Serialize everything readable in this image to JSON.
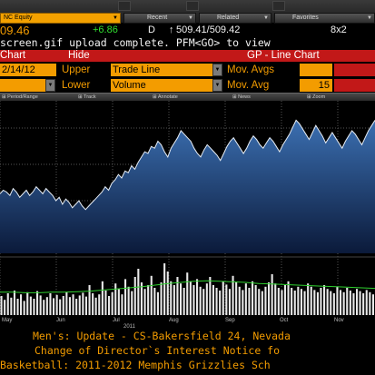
{
  "toolbar": {
    "ticker": "NC Equity",
    "recent": "Recent",
    "related": "Related",
    "favorites": "Favorites"
  },
  "quote": {
    "price": "09.46",
    "change": "+6.86",
    "flag": "D",
    "bidask": "509.41/509.42",
    "size": "8x2"
  },
  "message": "screen.gif upload complete. PFM<GO> to view",
  "menu": {
    "chart_label": "Chart",
    "hide_label": "Hide",
    "title": "GP - Line Chart",
    "date": "2/14/12",
    "upper_label": "Upper",
    "upper_value": "Trade Line",
    "lower_label": "Lower",
    "lower_value": "Volume",
    "mov_avgs_label": "Mov. Avgs",
    "mov_avg_label": "Mov. Avg",
    "mov_avg_value": "15"
  },
  "chart_tools": {
    "period": "Period/Range",
    "track": "Track",
    "annotate": "Annotate",
    "news": "News",
    "zoom": "Zoom"
  },
  "chart_data": {
    "type": "area",
    "title": "",
    "months": [
      "May",
      "Jun",
      "Jul",
      "Aug",
      "Sep",
      "Oct",
      "Nov"
    ],
    "year_label": "2011",
    "price_series": [
      0.34,
      0.36,
      0.35,
      0.33,
      0.37,
      0.35,
      0.32,
      0.34,
      0.36,
      0.33,
      0.35,
      0.38,
      0.36,
      0.34,
      0.37,
      0.35,
      0.33,
      0.3,
      0.32,
      0.28,
      0.31,
      0.29,
      0.26,
      0.28,
      0.3,
      0.27,
      0.25,
      0.27,
      0.29,
      0.31,
      0.33,
      0.35,
      0.38,
      0.36,
      0.4,
      0.42,
      0.45,
      0.43,
      0.47,
      0.46,
      0.5,
      0.48,
      0.52,
      0.55,
      0.58,
      0.57,
      0.61,
      0.6,
      0.64,
      0.62,
      0.58,
      0.55,
      0.6,
      0.63,
      0.66,
      0.7,
      0.68,
      0.66,
      0.64,
      0.6,
      0.57,
      0.55,
      0.59,
      0.62,
      0.6,
      0.58,
      0.56,
      0.53,
      0.57,
      0.61,
      0.64,
      0.66,
      0.63,
      0.6,
      0.57,
      0.6,
      0.64,
      0.67,
      0.65,
      0.62,
      0.6,
      0.63,
      0.66,
      0.64,
      0.61,
      0.58,
      0.62,
      0.65,
      0.68,
      0.72,
      0.76,
      0.74,
      0.71,
      0.68,
      0.65,
      0.69,
      0.73,
      0.7,
      0.67,
      0.63,
      0.66,
      0.69,
      0.66,
      0.63,
      0.6,
      0.64,
      0.67,
      0.7,
      0.68,
      0.65,
      0.62,
      0.66,
      0.7,
      0.73,
      0.76
    ],
    "volume_series": [
      0.35,
      0.28,
      0.4,
      0.32,
      0.45,
      0.3,
      0.38,
      0.26,
      0.42,
      0.34,
      0.3,
      0.44,
      0.36,
      0.28,
      0.33,
      0.4,
      0.31,
      0.37,
      0.29,
      0.35,
      0.42,
      0.33,
      0.38,
      0.3,
      0.36,
      0.41,
      0.34,
      0.55,
      0.4,
      0.32,
      0.38,
      0.62,
      0.45,
      0.35,
      0.42,
      0.58,
      0.48,
      0.38,
      0.66,
      0.52,
      0.44,
      0.7,
      0.85,
      0.6,
      0.48,
      0.55,
      0.72,
      0.5,
      0.42,
      0.6,
      0.95,
      0.8,
      0.62,
      0.55,
      0.7,
      0.58,
      0.5,
      0.78,
      0.62,
      0.55,
      0.66,
      0.52,
      0.48,
      0.58,
      0.7,
      0.55,
      0.5,
      0.45,
      0.62,
      0.56,
      0.48,
      0.72,
      0.6,
      0.52,
      0.46,
      0.58,
      0.5,
      0.62,
      0.55,
      0.48,
      0.44,
      0.52,
      0.6,
      0.75,
      0.58,
      0.5,
      0.46,
      0.55,
      0.62,
      0.5,
      0.45,
      0.52,
      0.48,
      0.44,
      0.58,
      0.52,
      0.46,
      0.42,
      0.5,
      0.55,
      0.48,
      0.44,
      0.4,
      0.52,
      0.46,
      0.42,
      0.5,
      0.45,
      0.4,
      0.48,
      0.44,
      0.4,
      0.46,
      0.42,
      0.38
    ],
    "moving_average": [
      0.42,
      0.42,
      0.41,
      0.41,
      0.42,
      0.42,
      0.43,
      0.44,
      0.46,
      0.48,
      0.5,
      0.52,
      0.55,
      0.58,
      0.6,
      0.62,
      0.63,
      0.62,
      0.61,
      0.6,
      0.58,
      0.57,
      0.56,
      0.55,
      0.54,
      0.53,
      0.52,
      0.51,
      0.5,
      0.49
    ],
    "colors": {
      "price_line": "#e8eef5",
      "area_top": "#3b6fb1",
      "area_bottom": "#0b1a3a",
      "volume": "#e8e8e8",
      "mavg": "#2fd02f"
    }
  },
  "news": [
    "Men's: Update - CS-Bakersfield 24, Nevada",
    "Change of Director`s Interest Notice fo",
    "Basketball: 2011-2012 Memphis Grizzlies Sch"
  ]
}
